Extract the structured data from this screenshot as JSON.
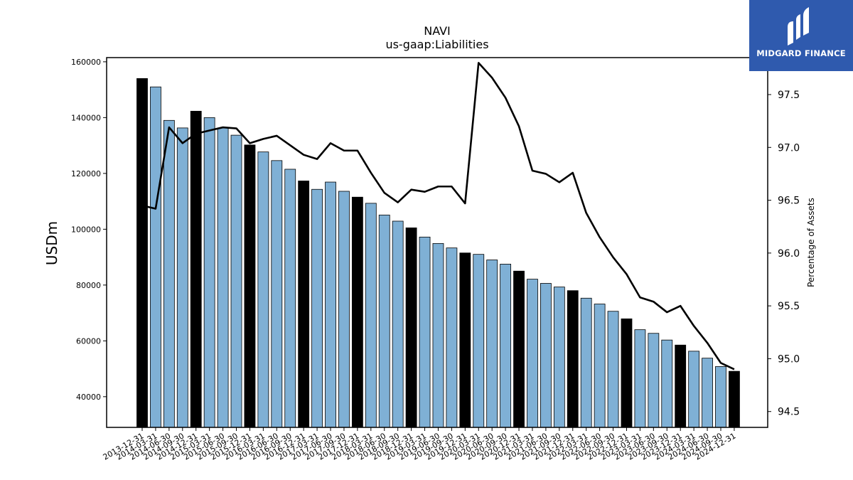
{
  "logo": {
    "text": "MIDGARD FINANCE"
  },
  "colors": {
    "bar_regular": "#7fb0d5",
    "bar_highlight": "#000000",
    "line": "#000000",
    "logo_bg": "#2f5aae"
  },
  "chart_data": {
    "type": "bar",
    "title": "NAVI",
    "subtitle": "us-gaap:Liabilities",
    "ylabel": "USDm",
    "y2label": "Percentage of Assets",
    "ylim": [
      29000,
      161500
    ],
    "y2lim": [
      94.35,
      97.85
    ],
    "yticks": [
      40000,
      60000,
      80000,
      100000,
      120000,
      140000,
      160000
    ],
    "y2ticks": [
      "94.5",
      "95.0",
      "95.5",
      "96.0",
      "96.5",
      "97.0",
      "97.5"
    ],
    "categories": [
      "2013-12-31",
      "2014-03-31",
      "2014-06-30",
      "2014-09-30",
      "2014-12-31",
      "2015-03-31",
      "2015-06-30",
      "2015-09-30",
      "2015-12-31",
      "2016-03-31",
      "2016-06-30",
      "2016-09-30",
      "2016-12-31",
      "2017-03-31",
      "2017-06-30",
      "2017-09-30",
      "2017-12-31",
      "2018-03-31",
      "2018-06-30",
      "2018-09-30",
      "2018-12-31",
      "2019-03-31",
      "2019-06-30",
      "2019-09-30",
      "2019-12-31",
      "2020-03-31",
      "2020-06-30",
      "2020-09-30",
      "2020-12-31",
      "2021-03-31",
      "2021-06-30",
      "2021-09-30",
      "2021-12-31",
      "2022-03-31",
      "2022-06-30",
      "2022-09-30",
      "2022-12-31",
      "2023-03-31",
      "2023-06-30",
      "2023-09-30",
      "2023-12-31",
      "2024-03-31",
      "2024-06-30",
      "2024-09-30",
      "2024-12-31"
    ],
    "highlight": [
      true,
      false,
      false,
      false,
      true,
      false,
      false,
      false,
      true,
      false,
      false,
      false,
      true,
      false,
      false,
      false,
      true,
      false,
      false,
      false,
      true,
      false,
      false,
      false,
      true,
      false,
      false,
      false,
      true,
      false,
      false,
      false,
      true,
      false,
      false,
      false,
      true,
      false,
      false,
      false,
      true,
      false,
      false,
      false,
      true
    ],
    "series": [
      {
        "type": "bar",
        "axis": "left",
        "values": [
          154000,
          151000,
          139000,
          136300,
          142300,
          140000,
          136300,
          133700,
          130200,
          127700,
          124600,
          121500,
          117300,
          114300,
          116900,
          113600,
          111500,
          109300,
          105100,
          102900,
          100500,
          97200,
          94900,
          93300,
          91500,
          91000,
          89000,
          87500,
          85000,
          82100,
          80600,
          79300,
          78000,
          75300,
          73200,
          70600,
          67900,
          64000,
          62700,
          60300,
          58500,
          56300,
          53800,
          50800,
          49100
        ]
      },
      {
        "type": "line",
        "axis": "right",
        "values": [
          96.45,
          96.42,
          97.19,
          97.04,
          97.13,
          97.16,
          97.19,
          97.18,
          97.04,
          97.08,
          97.11,
          97.02,
          96.93,
          96.89,
          97.04,
          96.97,
          96.97,
          96.76,
          96.57,
          96.48,
          96.6,
          96.58,
          96.63,
          96.63,
          96.47,
          97.8,
          97.66,
          97.47,
          97.2,
          96.78,
          96.75,
          96.67,
          96.76,
          96.38,
          96.15,
          95.96,
          95.8,
          95.58,
          95.54,
          95.44,
          95.5,
          95.31,
          95.15,
          94.96,
          94.9
        ]
      }
    ]
  }
}
